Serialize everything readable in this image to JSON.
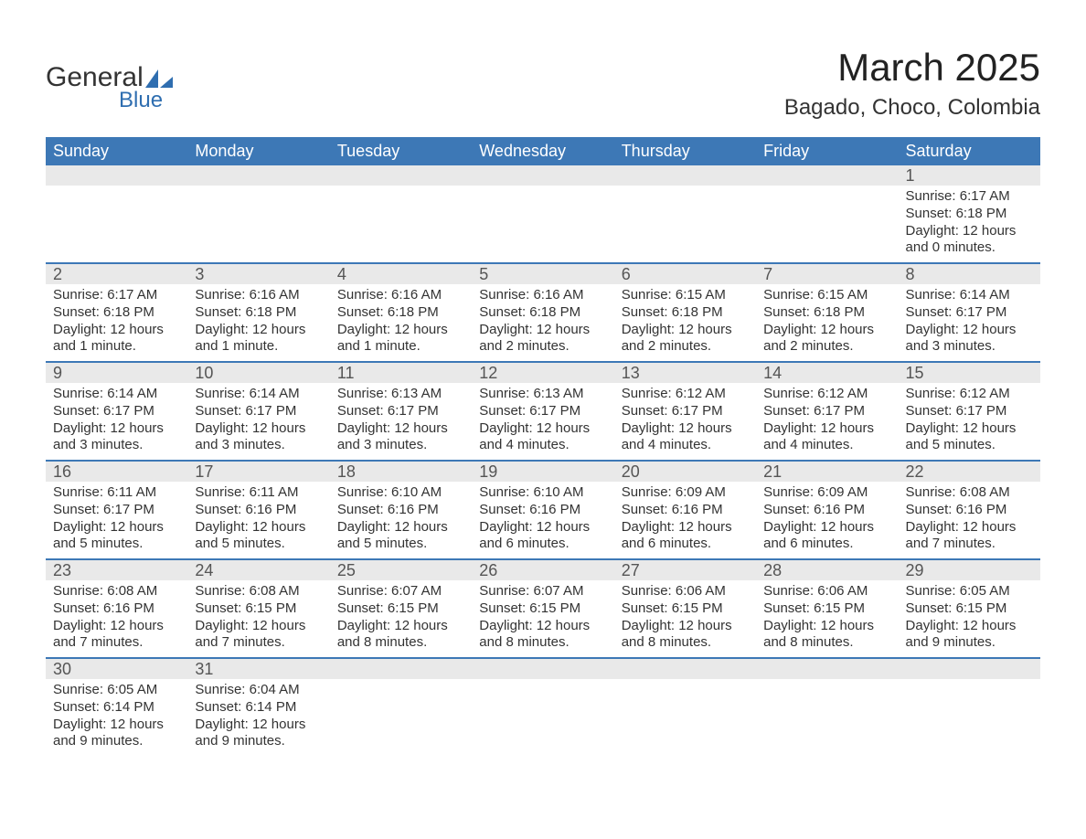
{
  "logo": {
    "general": "General",
    "blue": "Blue"
  },
  "header": {
    "month_title": "March 2025",
    "location": "Bagado, Choco, Colombia"
  },
  "colors": {
    "header_bg": "#3d78b6",
    "header_text": "#ffffff",
    "row_divider": "#3d78b6",
    "daynum_bg": "#e9e9e9",
    "daynum_text": "#555555",
    "body_text": "#333333",
    "logo_blue": "#2f6eb0",
    "page_bg": "#ffffff"
  },
  "typography": {
    "month_title_fontsize": 42,
    "location_fontsize": 24,
    "weekday_fontsize": 18,
    "daynum_fontsize": 18,
    "body_fontsize": 15,
    "font_family": "Arial"
  },
  "calendar": {
    "weekdays": [
      "Sunday",
      "Monday",
      "Tuesday",
      "Wednesday",
      "Thursday",
      "Friday",
      "Saturday"
    ],
    "weeks": [
      [
        {
          "day": "",
          "sunrise": "",
          "sunset": "",
          "daylight": ""
        },
        {
          "day": "",
          "sunrise": "",
          "sunset": "",
          "daylight": ""
        },
        {
          "day": "",
          "sunrise": "",
          "sunset": "",
          "daylight": ""
        },
        {
          "day": "",
          "sunrise": "",
          "sunset": "",
          "daylight": ""
        },
        {
          "day": "",
          "sunrise": "",
          "sunset": "",
          "daylight": ""
        },
        {
          "day": "",
          "sunrise": "",
          "sunset": "",
          "daylight": ""
        },
        {
          "day": "1",
          "sunrise": "Sunrise: 6:17 AM",
          "sunset": "Sunset: 6:18 PM",
          "daylight": "Daylight: 12 hours and 0 minutes."
        }
      ],
      [
        {
          "day": "2",
          "sunrise": "Sunrise: 6:17 AM",
          "sunset": "Sunset: 6:18 PM",
          "daylight": "Daylight: 12 hours and 1 minute."
        },
        {
          "day": "3",
          "sunrise": "Sunrise: 6:16 AM",
          "sunset": "Sunset: 6:18 PM",
          "daylight": "Daylight: 12 hours and 1 minute."
        },
        {
          "day": "4",
          "sunrise": "Sunrise: 6:16 AM",
          "sunset": "Sunset: 6:18 PM",
          "daylight": "Daylight: 12 hours and 1 minute."
        },
        {
          "day": "5",
          "sunrise": "Sunrise: 6:16 AM",
          "sunset": "Sunset: 6:18 PM",
          "daylight": "Daylight: 12 hours and 2 minutes."
        },
        {
          "day": "6",
          "sunrise": "Sunrise: 6:15 AM",
          "sunset": "Sunset: 6:18 PM",
          "daylight": "Daylight: 12 hours and 2 minutes."
        },
        {
          "day": "7",
          "sunrise": "Sunrise: 6:15 AM",
          "sunset": "Sunset: 6:18 PM",
          "daylight": "Daylight: 12 hours and 2 minutes."
        },
        {
          "day": "8",
          "sunrise": "Sunrise: 6:14 AM",
          "sunset": "Sunset: 6:17 PM",
          "daylight": "Daylight: 12 hours and 3 minutes."
        }
      ],
      [
        {
          "day": "9",
          "sunrise": "Sunrise: 6:14 AM",
          "sunset": "Sunset: 6:17 PM",
          "daylight": "Daylight: 12 hours and 3 minutes."
        },
        {
          "day": "10",
          "sunrise": "Sunrise: 6:14 AM",
          "sunset": "Sunset: 6:17 PM",
          "daylight": "Daylight: 12 hours and 3 minutes."
        },
        {
          "day": "11",
          "sunrise": "Sunrise: 6:13 AM",
          "sunset": "Sunset: 6:17 PM",
          "daylight": "Daylight: 12 hours and 3 minutes."
        },
        {
          "day": "12",
          "sunrise": "Sunrise: 6:13 AM",
          "sunset": "Sunset: 6:17 PM",
          "daylight": "Daylight: 12 hours and 4 minutes."
        },
        {
          "day": "13",
          "sunrise": "Sunrise: 6:12 AM",
          "sunset": "Sunset: 6:17 PM",
          "daylight": "Daylight: 12 hours and 4 minutes."
        },
        {
          "day": "14",
          "sunrise": "Sunrise: 6:12 AM",
          "sunset": "Sunset: 6:17 PM",
          "daylight": "Daylight: 12 hours and 4 minutes."
        },
        {
          "day": "15",
          "sunrise": "Sunrise: 6:12 AM",
          "sunset": "Sunset: 6:17 PM",
          "daylight": "Daylight: 12 hours and 5 minutes."
        }
      ],
      [
        {
          "day": "16",
          "sunrise": "Sunrise: 6:11 AM",
          "sunset": "Sunset: 6:17 PM",
          "daylight": "Daylight: 12 hours and 5 minutes."
        },
        {
          "day": "17",
          "sunrise": "Sunrise: 6:11 AM",
          "sunset": "Sunset: 6:16 PM",
          "daylight": "Daylight: 12 hours and 5 minutes."
        },
        {
          "day": "18",
          "sunrise": "Sunrise: 6:10 AM",
          "sunset": "Sunset: 6:16 PM",
          "daylight": "Daylight: 12 hours and 5 minutes."
        },
        {
          "day": "19",
          "sunrise": "Sunrise: 6:10 AM",
          "sunset": "Sunset: 6:16 PM",
          "daylight": "Daylight: 12 hours and 6 minutes."
        },
        {
          "day": "20",
          "sunrise": "Sunrise: 6:09 AM",
          "sunset": "Sunset: 6:16 PM",
          "daylight": "Daylight: 12 hours and 6 minutes."
        },
        {
          "day": "21",
          "sunrise": "Sunrise: 6:09 AM",
          "sunset": "Sunset: 6:16 PM",
          "daylight": "Daylight: 12 hours and 6 minutes."
        },
        {
          "day": "22",
          "sunrise": "Sunrise: 6:08 AM",
          "sunset": "Sunset: 6:16 PM",
          "daylight": "Daylight: 12 hours and 7 minutes."
        }
      ],
      [
        {
          "day": "23",
          "sunrise": "Sunrise: 6:08 AM",
          "sunset": "Sunset: 6:16 PM",
          "daylight": "Daylight: 12 hours and 7 minutes."
        },
        {
          "day": "24",
          "sunrise": "Sunrise: 6:08 AM",
          "sunset": "Sunset: 6:15 PM",
          "daylight": "Daylight: 12 hours and 7 minutes."
        },
        {
          "day": "25",
          "sunrise": "Sunrise: 6:07 AM",
          "sunset": "Sunset: 6:15 PM",
          "daylight": "Daylight: 12 hours and 8 minutes."
        },
        {
          "day": "26",
          "sunrise": "Sunrise: 6:07 AM",
          "sunset": "Sunset: 6:15 PM",
          "daylight": "Daylight: 12 hours and 8 minutes."
        },
        {
          "day": "27",
          "sunrise": "Sunrise: 6:06 AM",
          "sunset": "Sunset: 6:15 PM",
          "daylight": "Daylight: 12 hours and 8 minutes."
        },
        {
          "day": "28",
          "sunrise": "Sunrise: 6:06 AM",
          "sunset": "Sunset: 6:15 PM",
          "daylight": "Daylight: 12 hours and 8 minutes."
        },
        {
          "day": "29",
          "sunrise": "Sunrise: 6:05 AM",
          "sunset": "Sunset: 6:15 PM",
          "daylight": "Daylight: 12 hours and 9 minutes."
        }
      ],
      [
        {
          "day": "30",
          "sunrise": "Sunrise: 6:05 AM",
          "sunset": "Sunset: 6:14 PM",
          "daylight": "Daylight: 12 hours and 9 minutes."
        },
        {
          "day": "31",
          "sunrise": "Sunrise: 6:04 AM",
          "sunset": "Sunset: 6:14 PM",
          "daylight": "Daylight: 12 hours and 9 minutes."
        },
        {
          "day": "",
          "sunrise": "",
          "sunset": "",
          "daylight": ""
        },
        {
          "day": "",
          "sunrise": "",
          "sunset": "",
          "daylight": ""
        },
        {
          "day": "",
          "sunrise": "",
          "sunset": "",
          "daylight": ""
        },
        {
          "day": "",
          "sunrise": "",
          "sunset": "",
          "daylight": ""
        },
        {
          "day": "",
          "sunrise": "",
          "sunset": "",
          "daylight": ""
        }
      ]
    ]
  }
}
